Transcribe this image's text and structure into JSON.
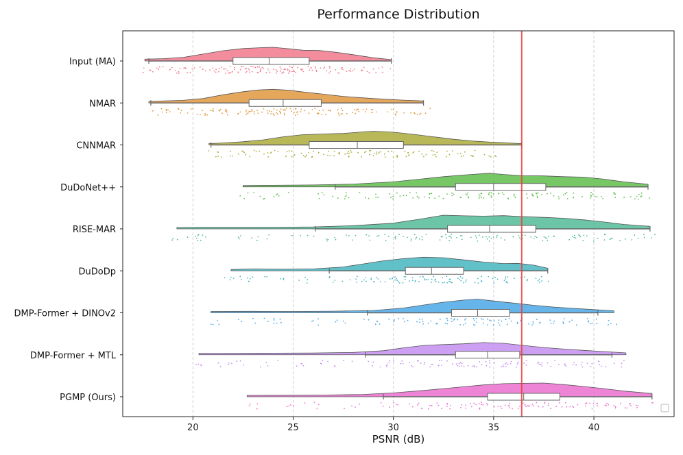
{
  "chart_data": {
    "type": "raincloud",
    "title": "Performance Distribution",
    "xlabel": "PSNR (dB)",
    "ylabel": "",
    "xlim": [
      16.5,
      44.0
    ],
    "xticks": [
      20,
      25,
      30,
      35,
      40
    ],
    "grid": "vertical dashed",
    "legend": "bottom-right (empty)",
    "reference_line": {
      "x": 36.4,
      "color": "#e8403e"
    },
    "series": [
      {
        "name": "Input (MA)",
        "color": "#f1798c",
        "min": 17.8,
        "q1": 22.0,
        "median": 23.8,
        "q3": 25.8,
        "max": 29.9,
        "density": [
          [
            17.6,
            0.04
          ],
          [
            18.5,
            0.08
          ],
          [
            19.5,
            0.18
          ],
          [
            20.5,
            0.45
          ],
          [
            21.5,
            0.72
          ],
          [
            22.5,
            0.9
          ],
          [
            23.5,
            0.98
          ],
          [
            24.0,
            1.0
          ],
          [
            24.8,
            0.88
          ],
          [
            25.5,
            0.76
          ],
          [
            26.3,
            0.74
          ],
          [
            27.0,
            0.62
          ],
          [
            28.0,
            0.4
          ],
          [
            29.0,
            0.15
          ],
          [
            29.9,
            0.0
          ]
        ],
        "points": [
          17.9,
          18.2,
          18.8,
          19.2,
          19.6,
          20.1,
          20.4,
          20.9,
          21.2,
          21.5,
          21.8,
          22.0,
          22.3,
          22.5,
          22.8,
          23.0,
          23.2,
          23.4,
          23.6,
          23.8,
          24.0,
          24.2,
          24.4,
          24.6,
          24.8,
          25.0,
          25.3,
          25.6,
          25.9,
          26.2,
          26.5,
          26.9,
          27.2,
          27.6,
          28.0,
          28.4,
          28.9,
          29.5
        ]
      },
      {
        "name": "NMAR",
        "color": "#e0983f",
        "min": 17.9,
        "q1": 22.8,
        "median": 24.5,
        "q3": 26.4,
        "max": 31.5,
        "density": [
          [
            17.8,
            0.0
          ],
          [
            18.5,
            0.05
          ],
          [
            19.5,
            0.1
          ],
          [
            20.5,
            0.25
          ],
          [
            21.5,
            0.55
          ],
          [
            22.5,
            0.8
          ],
          [
            23.3,
            0.95
          ],
          [
            24.0,
            1.0
          ],
          [
            24.8,
            0.92
          ],
          [
            25.5,
            0.78
          ],
          [
            26.5,
            0.6
          ],
          [
            27.5,
            0.42
          ],
          [
            28.5,
            0.3
          ],
          [
            29.5,
            0.2
          ],
          [
            30.5,
            0.12
          ],
          [
            31.5,
            0.05
          ]
        ],
        "points": [
          18.4,
          18.7,
          19.3,
          19.8,
          20.3,
          20.9,
          21.3,
          21.7,
          22.0,
          22.4,
          22.7,
          23.0,
          23.3,
          23.5,
          23.8,
          24.0,
          24.3,
          24.5,
          24.8,
          25.0,
          25.3,
          25.6,
          25.9,
          26.2,
          26.6,
          27.0,
          27.4,
          27.8,
          28.3,
          28.8,
          29.3,
          29.8,
          30.4,
          31.0,
          31.4
        ]
      },
      {
        "name": "CNNMAR",
        "color": "#abab3c",
        "min": 20.9,
        "q1": 25.8,
        "median": 28.2,
        "q3": 30.5,
        "max": 36.4,
        "density": [
          [
            20.8,
            0.0
          ],
          [
            21.5,
            0.05
          ],
          [
            22.5,
            0.15
          ],
          [
            23.5,
            0.3
          ],
          [
            24.5,
            0.55
          ],
          [
            25.5,
            0.72
          ],
          [
            26.5,
            0.78
          ],
          [
            27.5,
            0.82
          ],
          [
            28.5,
            0.95
          ],
          [
            29.0,
            1.0
          ],
          [
            30.0,
            0.92
          ],
          [
            31.0,
            0.75
          ],
          [
            32.0,
            0.55
          ],
          [
            33.0,
            0.35
          ],
          [
            34.0,
            0.2
          ],
          [
            35.0,
            0.1
          ],
          [
            36.4,
            0.0
          ]
        ],
        "points": [
          21.0,
          21.6,
          22.3,
          22.9,
          23.5,
          24.0,
          24.5,
          25.0,
          25.4,
          25.8,
          26.2,
          26.6,
          27.0,
          27.4,
          27.8,
          28.2,
          28.6,
          29.0,
          29.4,
          29.8,
          30.2,
          30.6,
          31.0,
          31.5,
          32.0,
          32.5,
          33.0,
          33.6,
          34.2,
          34.8
        ]
      },
      {
        "name": "DuDoNet++",
        "color": "#5fbd4b",
        "min": 27.1,
        "q1": 33.1,
        "median": 35.0,
        "q3": 37.6,
        "max": 42.7,
        "density": [
          [
            22.5,
            0.0
          ],
          [
            24.0,
            0.02
          ],
          [
            26.0,
            0.05
          ],
          [
            28.0,
            0.12
          ],
          [
            30.0,
            0.3
          ],
          [
            31.5,
            0.55
          ],
          [
            32.5,
            0.72
          ],
          [
            33.5,
            0.85
          ],
          [
            34.8,
            1.0
          ],
          [
            35.5,
            0.9
          ],
          [
            36.5,
            0.8
          ],
          [
            37.5,
            0.78
          ],
          [
            38.5,
            0.72
          ],
          [
            39.5,
            0.68
          ],
          [
            40.5,
            0.52
          ],
          [
            41.5,
            0.3
          ],
          [
            42.7,
            0.1
          ]
        ],
        "points": [
          22.6,
          23.8,
          24.6,
          26.1,
          27.2,
          28.0,
          28.9,
          29.6,
          30.3,
          30.9,
          31.5,
          32.0,
          32.5,
          33.0,
          33.5,
          34.0,
          34.4,
          34.8,
          35.2,
          35.6,
          36.0,
          36.5,
          37.0,
          37.5,
          38.0,
          38.5,
          39.0,
          39.6,
          40.2,
          40.8,
          41.4,
          42.0,
          42.6
        ]
      },
      {
        "name": "RISE-MAR",
        "color": "#52bb97",
        "min": 26.1,
        "q1": 32.7,
        "median": 34.8,
        "q3": 37.1,
        "max": 42.8,
        "density": [
          [
            19.2,
            0.0
          ],
          [
            20.5,
            0.02
          ],
          [
            22.0,
            0.01
          ],
          [
            24.0,
            0.02
          ],
          [
            26.0,
            0.05
          ],
          [
            28.0,
            0.15
          ],
          [
            30.0,
            0.35
          ],
          [
            31.5,
            0.72
          ],
          [
            32.5,
            1.0
          ],
          [
            33.5,
            0.95
          ],
          [
            34.5,
            0.92
          ],
          [
            35.5,
            0.96
          ],
          [
            36.5,
            0.88
          ],
          [
            37.5,
            0.82
          ],
          [
            38.5,
            0.75
          ],
          [
            39.5,
            0.62
          ],
          [
            40.5,
            0.45
          ],
          [
            41.5,
            0.25
          ],
          [
            42.8,
            0.1
          ]
        ],
        "points": [
          19.4,
          20.4,
          20.7,
          22.5,
          23.6,
          25.3,
          26.3,
          27.5,
          28.4,
          29.2,
          29.9,
          30.5,
          31.0,
          31.5,
          32.0,
          32.5,
          33.0,
          33.5,
          34.0,
          34.5,
          35.0,
          35.5,
          36.0,
          36.5,
          37.0,
          37.5,
          38.0,
          38.6,
          39.2,
          39.8,
          40.5,
          41.2,
          41.9,
          42.6
        ]
      },
      {
        "name": "DuDoDp",
        "color": "#47b5c0",
        "min": 26.8,
        "q1": 30.6,
        "median": 31.9,
        "q3": 33.5,
        "max": 37.7,
        "density": [
          [
            21.9,
            0.0
          ],
          [
            23.0,
            0.04
          ],
          [
            24.5,
            0.02
          ],
          [
            26.0,
            0.05
          ],
          [
            27.5,
            0.2
          ],
          [
            28.5,
            0.45
          ],
          [
            29.5,
            0.7
          ],
          [
            30.5,
            0.88
          ],
          [
            31.5,
            1.0
          ],
          [
            32.5,
            0.95
          ],
          [
            33.5,
            0.78
          ],
          [
            34.5,
            0.6
          ],
          [
            35.5,
            0.48
          ],
          [
            36.2,
            0.5
          ],
          [
            37.0,
            0.35
          ],
          [
            37.7,
            0.1
          ]
        ],
        "points": [
          21.9,
          22.6,
          23.2,
          24.1,
          25.3,
          26.9,
          27.8,
          28.4,
          28.9,
          29.3,
          29.7,
          30.1,
          30.5,
          30.8,
          31.1,
          31.4,
          31.7,
          32.0,
          32.3,
          32.6,
          32.9,
          33.2,
          33.6,
          34.0,
          34.4,
          34.9,
          35.4,
          35.9,
          36.4,
          37.0,
          37.5
        ]
      },
      {
        "name": "DMP-Former + DINOv2",
        "color": "#4aa8e6",
        "min": 28.7,
        "q1": 32.9,
        "median": 34.2,
        "q3": 35.8,
        "max": 40.2,
        "density": [
          [
            20.9,
            0.0
          ],
          [
            23.0,
            0.01
          ],
          [
            25.0,
            0.0
          ],
          [
            27.0,
            0.02
          ],
          [
            29.0,
            0.08
          ],
          [
            30.5,
            0.28
          ],
          [
            31.5,
            0.52
          ],
          [
            32.5,
            0.75
          ],
          [
            33.5,
            0.92
          ],
          [
            34.2,
            1.0
          ],
          [
            35.0,
            0.85
          ],
          [
            36.0,
            0.68
          ],
          [
            37.0,
            0.5
          ],
          [
            38.0,
            0.35
          ],
          [
            39.0,
            0.25
          ],
          [
            40.0,
            0.15
          ],
          [
            41.0,
            0.05
          ]
        ],
        "points": [
          20.9,
          22.7,
          23.9,
          24.3,
          26.1,
          27.3,
          28.7,
          29.6,
          30.3,
          30.9,
          31.4,
          31.9,
          32.3,
          32.7,
          33.1,
          33.5,
          33.9,
          34.2,
          34.5,
          34.9,
          35.3,
          35.7,
          36.1,
          36.6,
          37.1,
          37.6,
          38.2,
          38.8,
          39.4,
          40.1,
          40.7
        ]
      },
      {
        "name": "DMP-Former + MTL",
        "color": "#c38ef0",
        "min": 28.6,
        "q1": 33.1,
        "median": 34.7,
        "q3": 36.3,
        "max": 40.9,
        "density": [
          [
            20.3,
            0.0
          ],
          [
            22.0,
            0.01
          ],
          [
            24.0,
            0.02
          ],
          [
            26.0,
            0.03
          ],
          [
            28.0,
            0.08
          ],
          [
            29.5,
            0.22
          ],
          [
            30.5,
            0.45
          ],
          [
            31.5,
            0.65
          ],
          [
            32.5,
            0.72
          ],
          [
            33.5,
            0.78
          ],
          [
            34.5,
            0.88
          ],
          [
            35.5,
            0.82
          ],
          [
            36.5,
            0.65
          ],
          [
            37.5,
            0.48
          ],
          [
            38.5,
            0.35
          ],
          [
            39.5,
            0.25
          ],
          [
            40.5,
            0.15
          ],
          [
            41.6,
            0.04
          ]
        ],
        "points": [
          20.4,
          21.5,
          22.3,
          23.8,
          25.1,
          26.7,
          27.5,
          28.6,
          29.4,
          30.1,
          30.7,
          31.2,
          31.7,
          32.2,
          32.7,
          33.2,
          33.6,
          34.0,
          34.4,
          34.8,
          35.2,
          35.6,
          36.0,
          36.5,
          37.0,
          37.6,
          38.2,
          38.8,
          39.4,
          40.0,
          40.6,
          41.3
        ]
      },
      {
        "name": "PGMP (Ours)",
        "color": "#ea6fcf",
        "min": 29.5,
        "q1": 34.7,
        "median": 36.5,
        "q3": 38.3,
        "max": 42.9,
        "density": [
          [
            22.7,
            0.0
          ],
          [
            24.5,
            0.01
          ],
          [
            26.5,
            0.03
          ],
          [
            28.5,
            0.08
          ],
          [
            30.0,
            0.2
          ],
          [
            31.5,
            0.4
          ],
          [
            32.5,
            0.55
          ],
          [
            33.5,
            0.7
          ],
          [
            34.5,
            0.85
          ],
          [
            35.5,
            0.95
          ],
          [
            36.5,
            0.98
          ],
          [
            37.5,
            1.0
          ],
          [
            38.5,
            0.88
          ],
          [
            39.5,
            0.72
          ],
          [
            40.5,
            0.55
          ],
          [
            41.5,
            0.35
          ],
          [
            42.9,
            0.15
          ]
        ],
        "points": [
          22.8,
          24.7,
          26.0,
          27.9,
          29.6,
          30.4,
          31.0,
          31.6,
          32.1,
          32.6,
          33.1,
          33.6,
          34.1,
          34.6,
          35.0,
          35.4,
          35.8,
          36.2,
          36.6,
          37.0,
          37.4,
          37.8,
          38.3,
          38.8,
          39.3,
          39.8,
          40.3,
          40.8,
          41.4,
          42.0,
          42.6
        ]
      }
    ]
  }
}
